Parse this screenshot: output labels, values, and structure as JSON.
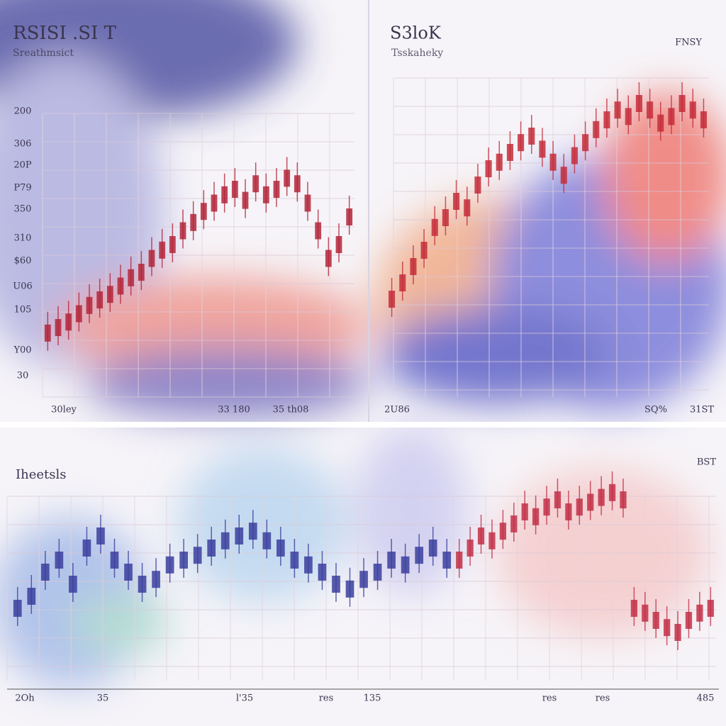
{
  "chart_data": [
    {
      "type": "candlestick",
      "title": "RSISI .SI T",
      "subtitle": "Sreathmsict",
      "y_labels": [
        "200",
        "306",
        "20P",
        "P79",
        "350",
        "310",
        "$60",
        "U06",
        "105",
        "Y00",
        "30"
      ],
      "x_labels": [
        "30ley",
        "33 180",
        "35 th08"
      ],
      "ylim": [
        0,
        100
      ],
      "series": [
        {
          "color": "#b3263a",
          "values": [
            18,
            20,
            22,
            25,
            28,
            30,
            32,
            35,
            38,
            40,
            45,
            48,
            50,
            55,
            58,
            62,
            65,
            68,
            70,
            66,
            72,
            68,
            70,
            74,
            72,
            65,
            55,
            45,
            50,
            60
          ]
        }
      ]
    },
    {
      "type": "candlestick",
      "title": "S3loK",
      "subtitle": "Tsskaheky",
      "annotation": "FNSY",
      "x_labels": [
        "2U86",
        "SQ%",
        "31ST"
      ],
      "ylim": [
        0,
        100
      ],
      "series": [
        {
          "color": "#c42d3a",
          "values": [
            30,
            35,
            40,
            45,
            52,
            55,
            60,
            58,
            65,
            70,
            72,
            75,
            78,
            80,
            76,
            72,
            68,
            74,
            78,
            82,
            85,
            88,
            86,
            90,
            88,
            84,
            86,
            90,
            88,
            85
          ]
        }
      ]
    },
    {
      "type": "candlestick",
      "title": "Iheetsls",
      "annotation": "BST",
      "x_labels": [
        "2Oh",
        "35",
        "l'35",
        "res",
        "135",
        "res",
        "res",
        "485"
      ],
      "ylim": [
        0,
        100
      ],
      "series": [
        {
          "color": "#3b3f9e",
          "values": [
            30,
            35,
            45,
            50,
            40,
            55,
            60,
            50,
            45,
            40,
            42,
            48,
            50,
            52,
            55,
            58,
            60,
            62,
            58,
            55,
            50,
            48,
            45,
            40,
            38,
            42,
            45,
            50,
            48,
            52,
            55,
            50
          ]
        },
        {
          "color": "#c23048",
          "values": [
            50,
            55,
            60,
            58,
            62,
            65,
            70,
            68,
            72,
            75,
            70,
            72,
            74,
            76,
            78,
            75,
            30,
            28,
            25,
            22,
            20,
            25,
            28,
            30
          ]
        }
      ]
    }
  ]
}
